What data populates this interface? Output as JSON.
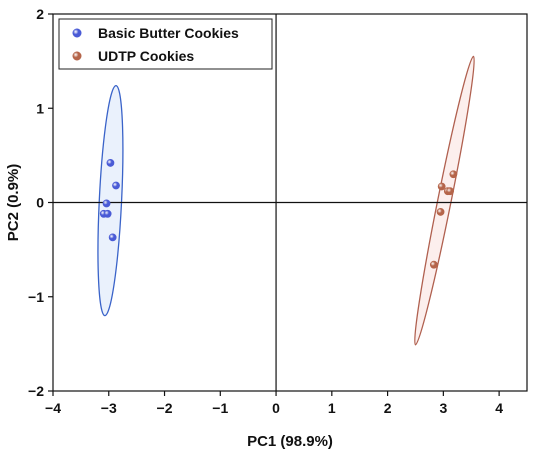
{
  "chart_data": {
    "type": "scatter",
    "xlabel": "PC1 (98.9%)",
    "ylabel": "PC2 (0.9%)",
    "xlim": [
      -4,
      4.5
    ],
    "ylim": [
      -2,
      2
    ],
    "xticks": [
      -4,
      -3,
      -2,
      -1,
      0,
      1,
      2,
      3,
      4
    ],
    "yticks": [
      -2,
      -1,
      0,
      1,
      2
    ],
    "grid": false,
    "zero_lines": true,
    "legend_position": "top-left",
    "series": [
      {
        "name": "Basic Butter Cookies",
        "color": "#4a5bd6",
        "ellipse_color": "#3a63c9",
        "ellipse_fill": "#e6eefc",
        "points": [
          {
            "x": -2.97,
            "y": 0.42
          },
          {
            "x": -2.87,
            "y": 0.18
          },
          {
            "x": -3.04,
            "y": -0.01
          },
          {
            "x": -3.09,
            "y": -0.12
          },
          {
            "x": -3.02,
            "y": -0.12
          },
          {
            "x": -2.93,
            "y": -0.37
          }
        ],
        "ellipse": {
          "cx": -2.97,
          "cy": 0.02,
          "p1": {
            "x": -2.87,
            "y": 1.24
          },
          "p2": {
            "x": 0.2,
            "y": 0.0
          }
        }
      },
      {
        "name": "UDTP Cookies",
        "color": "#b5654a",
        "ellipse_color": "#b0604f",
        "ellipse_fill": "#fbecea",
        "points": [
          {
            "x": 3.18,
            "y": 0.3
          },
          {
            "x": 2.97,
            "y": 0.17
          },
          {
            "x": 3.08,
            "y": 0.12
          },
          {
            "x": 3.12,
            "y": 0.12
          },
          {
            "x": 2.95,
            "y": -0.1
          },
          {
            "x": 2.83,
            "y": -0.66
          }
        ],
        "ellipse": {
          "cx": 3.02,
          "cy": 0.02,
          "p1": {
            "x": 3.54,
            "y": 1.55
          },
          "p2": {
            "x": 0.12,
            "y": 0.0
          }
        }
      }
    ]
  }
}
